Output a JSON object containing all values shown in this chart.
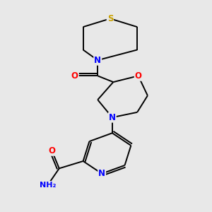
{
  "bg_color": "#e8e8e8",
  "bond_color": "#000000",
  "atom_colors": {
    "S": "#c8a000",
    "N": "#0000ff",
    "O": "#ff0000",
    "C": "#000000"
  },
  "lw": 1.4,
  "fontsize": 8.5
}
